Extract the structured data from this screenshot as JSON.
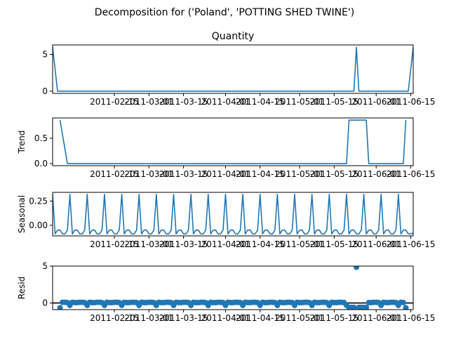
{
  "figure": {
    "suptitle": "Decomposition for ('Poland', 'POTTING SHED TWINE')"
  },
  "colors": {
    "series": "#1f77b4",
    "zero_line": "#000000",
    "frame": "#000000"
  },
  "chart_data": [
    {
      "type": "line",
      "title": "Quantity",
      "ylabel": "",
      "ylim": [
        -0.3,
        6.3
      ],
      "yticks": [
        "0",
        "5"
      ],
      "ytick_values": [
        0,
        5
      ],
      "xlim": [
        "2011-01-21",
        "2011-06-16"
      ],
      "xticks": [
        "2011-02-15",
        "2011-03-01",
        "2011-03-15",
        "2011-04-01",
        "2011-04-15",
        "2011-05-01",
        "2011-05-15",
        "2011-06-01",
        "2011-06-15"
      ],
      "series": [
        {
          "points": [
            [
              "2011-01-21",
              6
            ],
            [
              "2011-01-23",
              0
            ],
            [
              "2011-05-23",
              0
            ],
            [
              "2011-05-24",
              6
            ],
            [
              "2011-05-25",
              0
            ],
            [
              "2011-06-14",
              0
            ],
            [
              "2011-06-16",
              6
            ]
          ]
        }
      ]
    },
    {
      "type": "line",
      "title": "",
      "ylabel": "Trend",
      "ylim": [
        -0.04,
        0.9
      ],
      "yticks": [
        "0.0",
        "0.5"
      ],
      "ytick_values": [
        0,
        0.5
      ],
      "xlim": [
        "2011-01-21",
        "2011-06-16"
      ],
      "xticks": [
        "2011-02-15",
        "2011-03-01",
        "2011-03-15",
        "2011-04-01",
        "2011-04-15",
        "2011-05-01",
        "2011-05-15",
        "2011-06-01",
        "2011-06-15"
      ],
      "series": [
        {
          "points": [
            [
              "2011-01-24",
              0.857
            ],
            [
              "2011-01-27",
              0
            ],
            [
              "2011-05-20",
              0
            ],
            [
              "2011-05-21",
              0.857
            ],
            [
              "2011-05-28",
              0.857
            ],
            [
              "2011-05-29",
              0
            ],
            [
              "2011-06-12",
              0
            ],
            [
              "2011-06-13",
              0.857
            ]
          ]
        }
      ]
    },
    {
      "type": "line",
      "title": "",
      "ylabel": "Seasonal",
      "ylim": [
        -0.11,
        0.34
      ],
      "yticks": [
        "0.00",
        "0.25"
      ],
      "ytick_values": [
        0,
        0.25
      ],
      "xlim": [
        "2011-01-21",
        "2011-06-16"
      ],
      "xticks": [
        "2011-02-15",
        "2011-03-01",
        "2011-03-15",
        "2011-04-01",
        "2011-04-15",
        "2011-05-01",
        "2011-05-15",
        "2011-06-01",
        "2011-06-15"
      ],
      "period_days": 7,
      "first_peak": "2011-01-21",
      "pattern": [
        0.32,
        -0.09,
        -0.05,
        -0.05,
        -0.09,
        -0.09,
        -0.05
      ],
      "last_value": [
        -0.08
      ]
    },
    {
      "type": "scatter",
      "title": "",
      "ylabel": "Resid",
      "ylim": [
        -0.9,
        5.0
      ],
      "yticks": [
        "0",
        "5"
      ],
      "ytick_values": [
        0,
        5
      ],
      "xlim": [
        "2011-01-21",
        "2011-06-16"
      ],
      "xticks": [
        "2011-02-15",
        "2011-03-01",
        "2011-03-15",
        "2011-04-01",
        "2011-04-15",
        "2011-05-01",
        "2011-05-15",
        "2011-06-01",
        "2011-06-15"
      ],
      "zero_line": true,
      "points_range": [
        "2011-01-24",
        "2011-06-13"
      ],
      "pattern": [
        -0.32,
        0.09,
        0.05,
        0.05,
        0.09,
        0.09,
        0.05
      ],
      "pattern_first": "2011-01-21",
      "overrides": [
        [
          "2011-01-24",
          -0.65
        ],
        [
          "2011-05-21",
          -0.6
        ],
        [
          "2011-05-22",
          -0.6
        ],
        [
          "2011-05-23",
          -0.6
        ],
        [
          "2011-05-24",
          4.85
        ],
        [
          "2011-05-25",
          -0.6
        ],
        [
          "2011-05-26",
          -0.6
        ],
        [
          "2011-05-27",
          -0.6
        ],
        [
          "2011-05-28",
          -0.6
        ],
        [
          "2011-06-13",
          -0.65
        ]
      ]
    }
  ]
}
